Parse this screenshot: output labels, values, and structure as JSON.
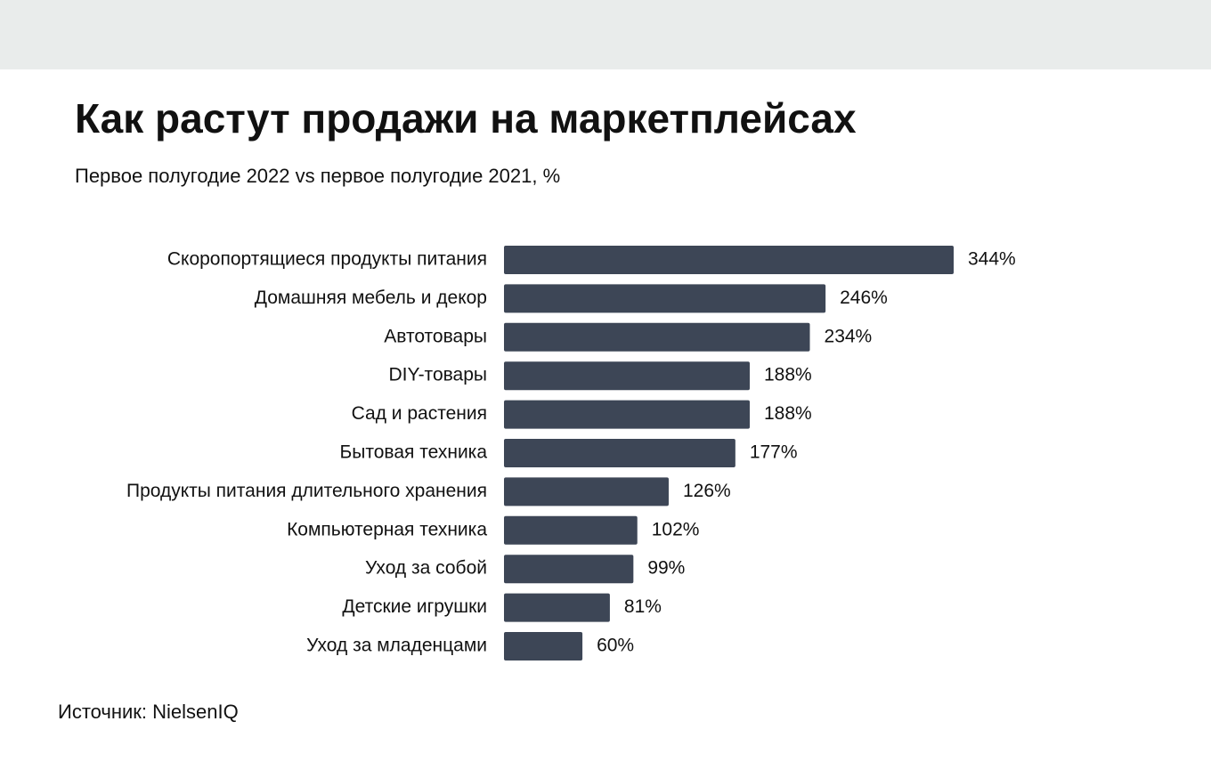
{
  "chart_data": {
    "type": "bar",
    "orientation": "horizontal",
    "title": "Как растут продажи на маркетплейсах",
    "subtitle": "Первое полугодие 2022 vs первое полугодие 2021, %",
    "source": "Источник: NielsenIQ",
    "categories": [
      "Скоропортящиеся продукты питания",
      "Домашняя мебель и декор",
      "Автотовары",
      "DIY-товары",
      "Сад и растения",
      "Бытовая техника",
      "Продукты питания длительного хранения",
      "Компьютерная техника",
      "Уход за собой",
      "Детские игрушки",
      "Уход за младенцами"
    ],
    "values": [
      344,
      246,
      234,
      188,
      188,
      177,
      126,
      102,
      99,
      81,
      60
    ],
    "value_labels": [
      "344%",
      "246%",
      "234%",
      "188%",
      "188%",
      "177%",
      "126%",
      "102%",
      "99%",
      "81%",
      "60%"
    ],
    "color": "#3d4656"
  }
}
